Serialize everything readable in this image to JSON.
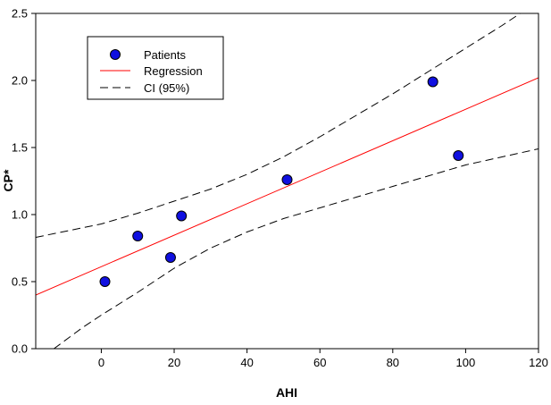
{
  "chart_data": {
    "type": "scatter",
    "xlabel": "AHI",
    "ylabel": "CP*",
    "xlim": [
      -18,
      120
    ],
    "ylim": [
      0.0,
      2.5
    ],
    "x_ticks": [
      0,
      20,
      40,
      60,
      80,
      100,
      120
    ],
    "x_tick_labels": [
      "0",
      "20",
      "40",
      "60",
      "80",
      "100",
      "120"
    ],
    "y_ticks": [
      0.0,
      0.5,
      1.0,
      1.5,
      2.0,
      2.5
    ],
    "y_tick_labels": [
      "0.0",
      "0.5",
      "1.0",
      "1.5",
      "2.0",
      "2.5"
    ],
    "grid": false,
    "legend_position": "top-left",
    "series": [
      {
        "name": "Patients",
        "kind": "points",
        "color": "#1010e0",
        "points": [
          {
            "x": 1,
            "y": 0.5
          },
          {
            "x": 10,
            "y": 0.84
          },
          {
            "x": 19,
            "y": 0.68
          },
          {
            "x": 22,
            "y": 0.99
          },
          {
            "x": 51,
            "y": 1.26
          },
          {
            "x": 91,
            "y": 1.99
          },
          {
            "x": 98,
            "y": 1.44
          }
        ]
      },
      {
        "name": "Regression",
        "kind": "line",
        "color": "#ff0000",
        "points": [
          {
            "x": -18,
            "y": 0.4
          },
          {
            "x": 120,
            "y": 2.02
          }
        ]
      },
      {
        "name": "CI (95%)",
        "kind": "dashed-band",
        "color": "#000000",
        "upper": [
          {
            "x": -18,
            "y": 0.83
          },
          {
            "x": 0,
            "y": 0.93
          },
          {
            "x": 10,
            "y": 1.01
          },
          {
            "x": 20,
            "y": 1.1
          },
          {
            "x": 30,
            "y": 1.19
          },
          {
            "x": 40,
            "y": 1.3
          },
          {
            "x": 50,
            "y": 1.43
          },
          {
            "x": 60,
            "y": 1.58
          },
          {
            "x": 70,
            "y": 1.74
          },
          {
            "x": 80,
            "y": 1.9
          },
          {
            "x": 90,
            "y": 2.07
          },
          {
            "x": 100,
            "y": 2.24
          },
          {
            "x": 110,
            "y": 2.41
          },
          {
            "x": 115,
            "y": 2.5
          }
        ],
        "lower": [
          {
            "x": -13,
            "y": 0.0
          },
          {
            "x": -5,
            "y": 0.16
          },
          {
            "x": 0,
            "y": 0.25
          },
          {
            "x": 10,
            "y": 0.42
          },
          {
            "x": 20,
            "y": 0.6
          },
          {
            "x": 30,
            "y": 0.75
          },
          {
            "x": 40,
            "y": 0.87
          },
          {
            "x": 50,
            "y": 0.97
          },
          {
            "x": 60,
            "y": 1.05
          },
          {
            "x": 70,
            "y": 1.13
          },
          {
            "x": 80,
            "y": 1.21
          },
          {
            "x": 90,
            "y": 1.29
          },
          {
            "x": 100,
            "y": 1.37
          },
          {
            "x": 110,
            "y": 1.43
          },
          {
            "x": 120,
            "y": 1.49
          }
        ]
      }
    ]
  }
}
